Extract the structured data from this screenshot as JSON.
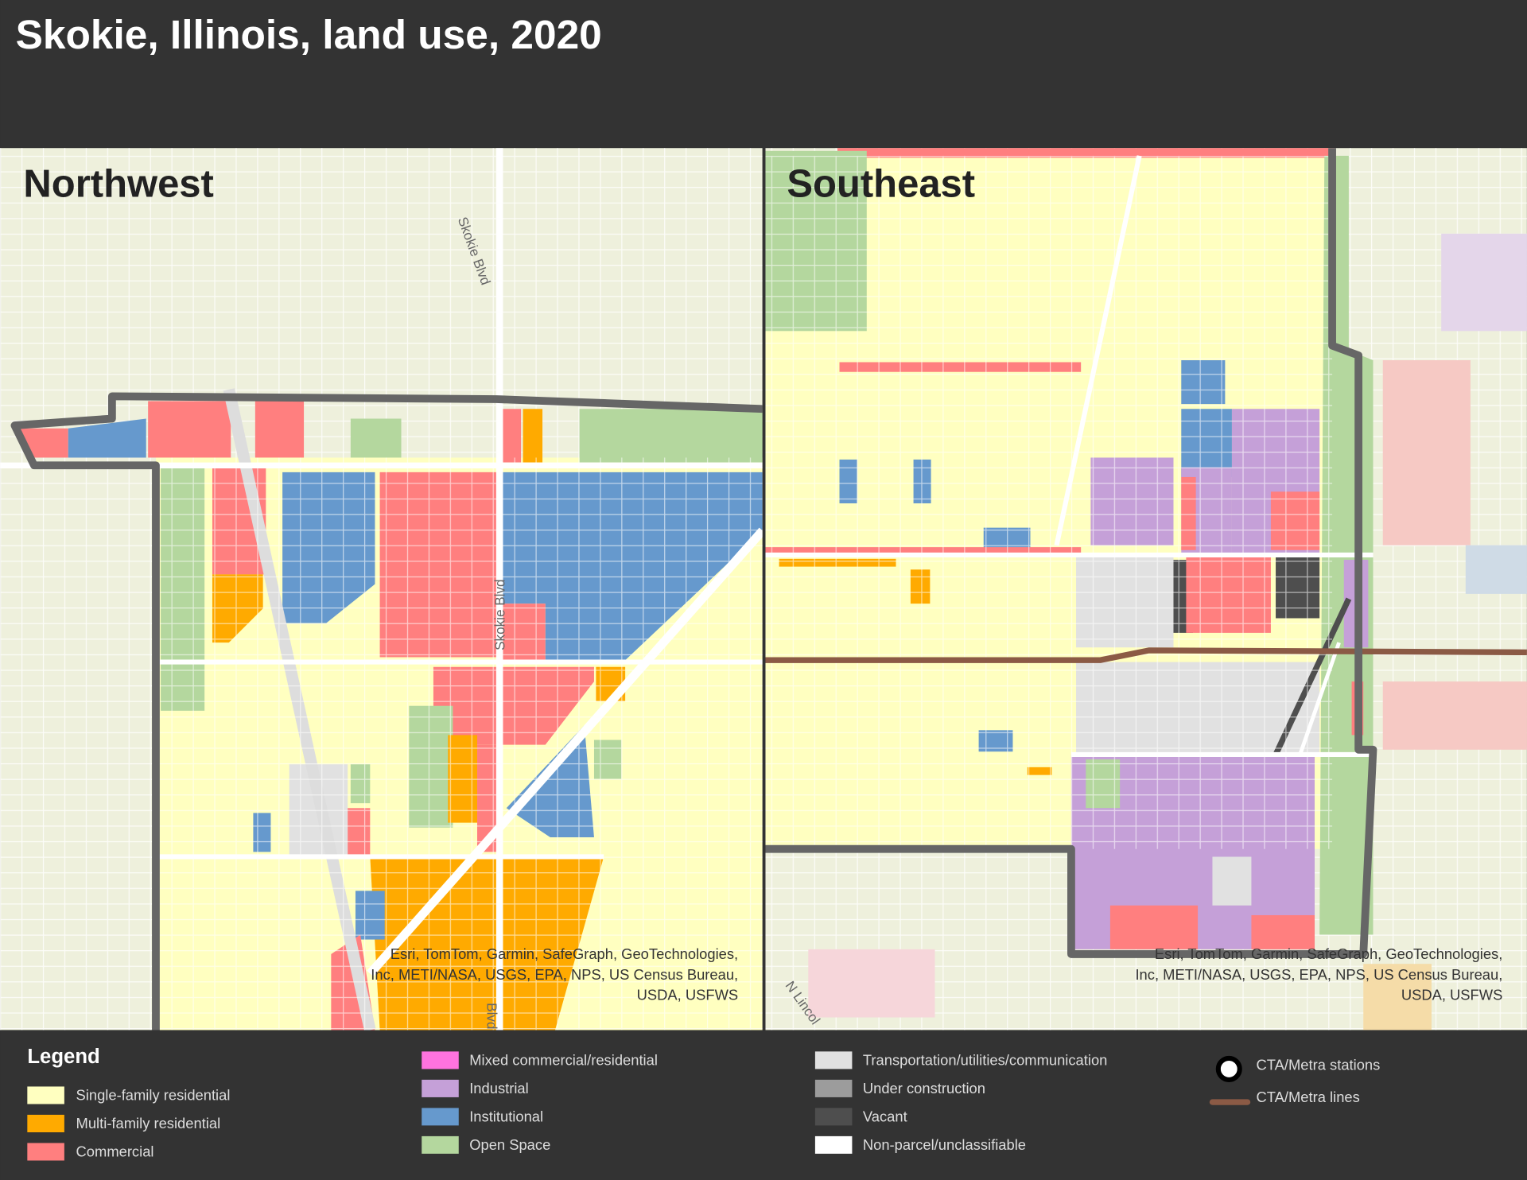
{
  "title": "Skokie, Illinois, land use, 2020",
  "panels": [
    {
      "title": "Northwest",
      "street_labels": [
        "Skokie Blvd",
        "Skokie Blvd",
        "Blvd"
      ],
      "attribution": [
        "Esri, TomTom, Garmin, SafeGraph, GeoTechnologies,",
        "Inc, METI/NASA, USGS, EPA, NPS, US Census Bureau,",
        "USDA, USFWS"
      ]
    },
    {
      "title": "Southeast",
      "street_labels": [
        "N Lincol"
      ],
      "attribution": [
        "Esri, TomTom, Garmin, SafeGraph, GeoTechnologies,",
        "Inc, METI/NASA, USGS, EPA, NPS, US Census Bureau,",
        "USDA, USFWS"
      ]
    }
  ],
  "legend": {
    "title": "Legend",
    "items": [
      {
        "label": "Single-family residential",
        "color": "#ffffc0",
        "symbol": "fill"
      },
      {
        "label": "Multi-family residential",
        "color": "#ffaa00",
        "symbol": "fill"
      },
      {
        "label": "Commercial",
        "color": "#ff7f7f",
        "symbol": "fill"
      },
      {
        "label": "Mixed commercial/residential",
        "color": "#ff73df",
        "symbol": "fill"
      },
      {
        "label": "Industrial",
        "color": "#c5a0d8",
        "symbol": "fill"
      },
      {
        "label": "Institutional",
        "color": "#6699cd",
        "symbol": "fill"
      },
      {
        "label": "Open Space",
        "color": "#b4d79e",
        "symbol": "fill"
      },
      {
        "label": "Transportation/utilities/communication",
        "color": "#e1e1e1",
        "symbol": "fill"
      },
      {
        "label": "Under construction",
        "color": "#9c9c9c",
        "symbol": "fill"
      },
      {
        "label": "Vacant",
        "color": "#4e4e4e",
        "symbol": "fill"
      },
      {
        "label": "Non-parcel/unclassifiable",
        "color": "#ffffff",
        "symbol": "fill"
      },
      {
        "label": "CTA/Metra stations",
        "color": "#ffffff",
        "symbol": "point"
      },
      {
        "label": "CTA/Metra lines",
        "color": "#8b5a45",
        "symbol": "line"
      }
    ]
  }
}
